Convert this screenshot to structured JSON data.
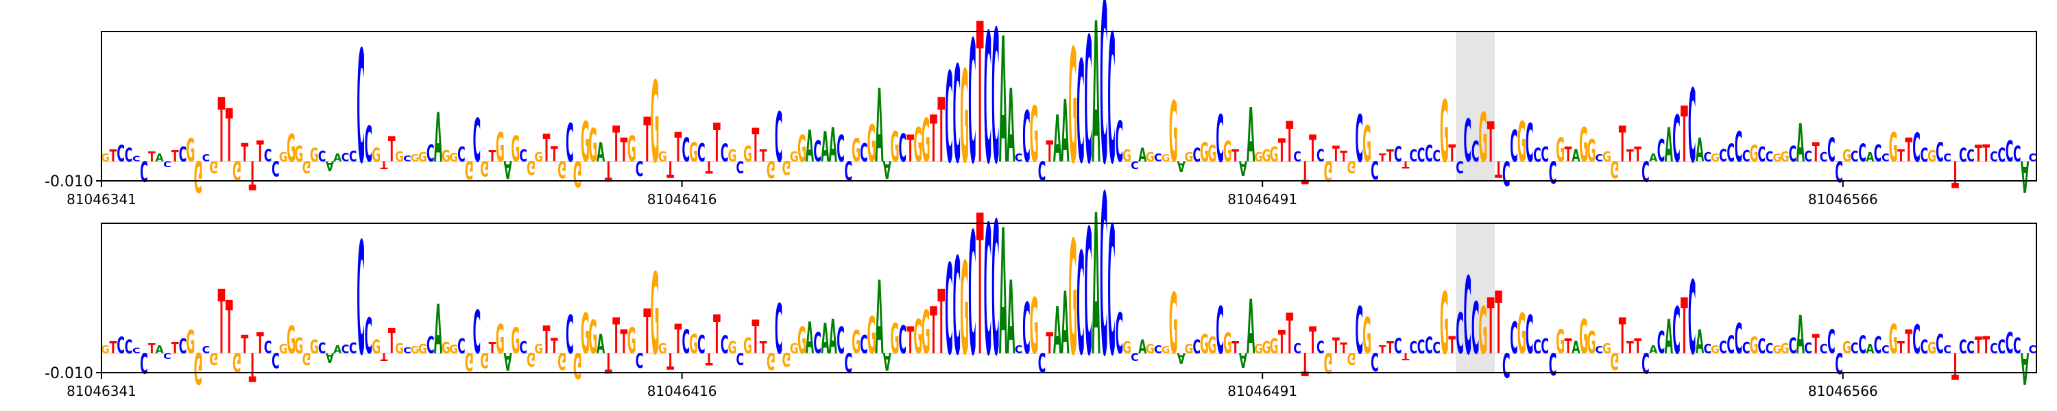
{
  "colors": {
    "A": "#008000",
    "C": "#0000ff",
    "G": "#ffa500",
    "T": "#ff0000",
    "highlight": "#e5e5e5",
    "frame": "#000000"
  },
  "chart_data": [
    {
      "type": "logo",
      "title": "",
      "xlabel": "",
      "ylabel": "",
      "xlim": [
        81046341,
        81046591
      ],
      "xticks": [
        81046341,
        81046416,
        81046491,
        81046566
      ],
      "xtick_labels": [
        "81046341",
        "81046416",
        "81046491",
        "81046566"
      ],
      "ytick_labels": [
        "-0.010"
      ],
      "highlight_range": [
        81046516,
        81046521
      ],
      "sequence": "GTCCCCTACTCGGCGTTGTTTCCGGGGGCAACCCCGTTGCGGCAGGCGCGTGAGCGGTTGCGGGATTTGCTGGTTCGCTTCGCGTTGCGGGACAACCGCGAAGCTGGTTCCGCTCCAACCGCTAAGCCACCCGCAGCGGAGCGGCGTAAGGGTTCTTCGTTGCGCTTCTCCCCGTCCCGTTCCGCCCCGTAGGCGGTTTCACACTCACGCCCCGCCGGCACTCCCGCCACCGTTCCGCCTCCTTCCCCACG",
      "scores": [
        0.0012,
        0.0018,
        0.0025,
        0.0021,
        0.0008,
        -0.0031,
        0.0015,
        0.0012,
        -0.0009,
        0.0017,
        0.0022,
        0.0035,
        -0.0048,
        0.0011,
        -0.0018,
        0.0098,
        0.0081,
        -0.0029,
        0.0028,
        -0.0044,
        0.0032,
        0.0019,
        -0.0023,
        0.0014,
        0.0042,
        0.0024,
        -0.0018,
        0.0021,
        0.0016,
        -0.0015,
        0.0012,
        0.0013,
        0.0016,
        0.0172,
        0.0054,
        0.0021,
        -0.0012,
        0.0038,
        0.0015,
        0.0009,
        0.0011,
        0.0014,
        0.0026,
        0.0075,
        0.0017,
        0.0013,
        0.0022,
        -0.0028,
        0.0066,
        -0.0023,
        0.0017,
        0.0045,
        -0.0027,
        0.0039,
        0.0018,
        -0.0021,
        0.0014,
        0.0042,
        0.0023,
        -0.0026,
        0.0058,
        -0.0039,
        0.0061,
        0.0051,
        0.0029,
        -0.0031,
        0.0054,
        0.0036,
        0.0039,
        -0.0022,
        0.0068,
        0.0124,
        0.0015,
        -0.0025,
        0.0045,
        0.0036,
        0.0029,
        0.0028,
        -0.0019,
        0.0059,
        0.0027,
        0.0018,
        -0.0018,
        0.0024,
        0.0051,
        0.0018,
        -0.0026,
        0.0076,
        -0.0021,
        0.0015,
        0.0041,
        0.0048,
        0.0032,
        0.0046,
        0.0052,
        0.0041,
        -0.0029,
        0.0035,
        0.0028,
        0.0056,
        0.0112,
        -0.0027,
        0.0046,
        0.0043,
        0.0041,
        0.0052,
        0.0066,
        0.0071,
        0.0098,
        0.0138,
        0.0148,
        0.0141,
        0.0187,
        0.0214,
        0.0198,
        0.0203,
        0.0192,
        0.0112,
        0.0012,
        0.0078,
        0.0085,
        -0.0029,
        0.0032,
        0.0071,
        0.0095,
        0.0174,
        0.0156,
        0.0192,
        0.0215,
        0.0245,
        0.0196,
        0.0062,
        0.0018,
        -0.0012,
        0.0021,
        0.0014,
        0.0012,
        0.0011,
        0.0092,
        -0.0016,
        0.0014,
        0.0021,
        0.0029,
        0.0025,
        0.0072,
        0.0031,
        0.0018,
        -0.0022,
        0.0083,
        0.0014,
        0.0018,
        0.0022,
        0.0035,
        0.0062,
        0.0015,
        -0.0035,
        0.0041,
        0.0019,
        -0.0031,
        0.0024,
        0.0016,
        -0.0018,
        0.0072,
        0.0055,
        -0.0028,
        0.0012,
        0.0018,
        0.0023,
        -0.0011,
        0.0018,
        0.0021,
        0.0025,
        0.0017,
        0.0094,
        0.0026,
        -0.0018,
        0.0065,
        0.0031,
        0.0075,
        0.0061,
        -0.0025,
        -0.0037,
        0.0048,
        0.0061,
        0.0058,
        0.0021,
        0.0022,
        -0.0034,
        0.0036,
        0.0022,
        0.0019,
        0.0052,
        0.0034,
        0.0011,
        0.0015,
        -0.0026,
        0.0054,
        0.0018,
        0.0022,
        -0.0031,
        0.0012,
        0.0034,
        0.0052,
        0.0071,
        0.0085,
        0.0112,
        0.0036,
        0.0014,
        0.0012,
        0.0019,
        0.0027,
        0.0046,
        0.0017,
        0.0025,
        0.0022,
        0.0015,
        0.0012,
        0.0015,
        0.0024,
        0.0058,
        0.0016,
        0.0029,
        0.0014,
        0.0036,
        -0.0032,
        0.0018,
        0.0016,
        0.0027,
        0.0014,
        0.0026,
        0.0012,
        0.0045,
        0.0018,
        0.0036,
        0.0044,
        0.0021,
        0.0017,
        0.0029,
        0.0012,
        -0.0041,
        0.0021,
        0.0018,
        0.0025,
        0.0026,
        0.0015,
        0.0021,
        0.0032,
        0.0024,
        -0.0048,
        0.0012
      ]
    },
    {
      "type": "logo",
      "title": "",
      "xlabel": "",
      "ylabel": "",
      "xlim": [
        81046341,
        81046591
      ],
      "xticks": [
        81046341,
        81046416,
        81046491,
        81046566
      ],
      "xtick_labels": [
        "81046341",
        "81046416",
        "81046491",
        "81046566"
      ],
      "ytick_labels": [
        "-0.010"
      ],
      "highlight_range": [
        81046516,
        81046521
      ],
      "sequence": "GTCCCCTACTCGGCGTTGTTTCCGGGGGCAACCCCGTTGCGGCAGGCGCGTGAGCGGTTGCGGGATTTGCTGGTTCGCTTCGCGTTGCGGGACAACCGCGAAGCTGGTTCCGCTCCAACCGCTAAGCCACCCGCAGCGGAGCGGCGTAAGGGTTCTTCGTTGCGCTTCTCCCCGTCCCGTTCCGCCCCGTAGGCGGTTTCACACTCACGCCCCGCCGGCACTCCCGCCACCGTTCCGCCTCCTTCCCCACG",
      "scores": [
        0.0012,
        0.0018,
        0.0025,
        0.0021,
        0.0008,
        -0.0031,
        0.0015,
        0.0012,
        -0.0009,
        0.0017,
        0.0022,
        0.0035,
        -0.0048,
        0.0011,
        -0.0018,
        0.0098,
        0.0081,
        -0.0029,
        0.0028,
        -0.0044,
        0.0032,
        0.0019,
        -0.0023,
        0.0014,
        0.0042,
        0.0024,
        -0.0018,
        0.0021,
        0.0016,
        -0.0015,
        0.0012,
        0.0013,
        0.0016,
        0.0172,
        0.0054,
        0.0021,
        -0.0012,
        0.0038,
        0.0015,
        0.0009,
        0.0011,
        0.0014,
        0.0026,
        0.0075,
        0.0017,
        0.0013,
        0.0022,
        -0.0028,
        0.0066,
        -0.0023,
        0.0017,
        0.0045,
        -0.0027,
        0.0039,
        0.0018,
        -0.0021,
        0.0014,
        0.0042,
        0.0023,
        -0.0026,
        0.0058,
        -0.0039,
        0.0061,
        0.0051,
        0.0029,
        -0.0031,
        0.0054,
        0.0036,
        0.0039,
        -0.0022,
        0.0068,
        0.0124,
        0.0015,
        -0.0025,
        0.0045,
        0.0036,
        0.0029,
        0.0028,
        -0.0019,
        0.0059,
        0.0027,
        0.0018,
        -0.0018,
        0.0024,
        0.0051,
        0.0018,
        -0.0026,
        0.0076,
        -0.0021,
        0.0015,
        0.0041,
        0.0048,
        0.0032,
        0.0046,
        0.0052,
        0.0041,
        -0.0029,
        0.0035,
        0.0028,
        0.0056,
        0.0112,
        -0.0027,
        0.0046,
        0.0043,
        0.0041,
        0.0052,
        0.0066,
        0.0071,
        0.0098,
        0.0138,
        0.0148,
        0.0141,
        0.0187,
        0.0214,
        0.0198,
        0.0203,
        0.0192,
        0.0112,
        0.0012,
        0.0078,
        0.0085,
        -0.0029,
        0.0032,
        0.0071,
        0.0095,
        0.0174,
        0.0156,
        0.0192,
        0.0215,
        0.0245,
        0.0196,
        0.0062,
        0.0018,
        -0.0012,
        0.0021,
        0.0014,
        0.0012,
        0.0011,
        0.0092,
        -0.0016,
        0.0014,
        0.0021,
        0.0029,
        0.0025,
        0.0072,
        0.0031,
        0.0018,
        -0.0022,
        0.0083,
        0.0014,
        0.0018,
        0.0022,
        0.0035,
        0.0062,
        0.0015,
        -0.0035,
        0.0041,
        0.0019,
        -0.0031,
        0.0024,
        0.0016,
        -0.0018,
        0.0072,
        0.0055,
        -0.0028,
        0.0012,
        0.0018,
        0.0023,
        -0.0011,
        0.0018,
        0.0021,
        0.0025,
        0.0017,
        0.0094,
        0.0026,
        -0.0018,
        0.0065,
        0.0031,
        0.0075,
        0.0061,
        -0.0025,
        -0.0037,
        0.0048,
        0.0061,
        0.0058,
        0.0021,
        0.0022,
        -0.0034,
        0.0036,
        0.0022,
        0.0019,
        0.0052,
        0.0034,
        0.0011,
        0.0015,
        -0.0026,
        0.0054,
        0.0018,
        0.0022,
        -0.0031,
        0.0012,
        0.0034,
        0.0052,
        0.0071,
        0.0085,
        0.0112,
        0.0036,
        0.0014,
        0.0012,
        0.0019,
        0.0027,
        0.0046,
        0.0017,
        0.0025,
        0.0022,
        0.0015,
        0.0012,
        0.0015,
        0.0024,
        0.0058,
        0.0016,
        0.0029,
        0.0014,
        0.0036,
        -0.0032,
        0.0018,
        0.0016,
        0.0027,
        0.0014,
        0.0026,
        0.0012,
        0.0045,
        0.0018,
        0.0036,
        0.0044,
        0.0021,
        0.0017,
        0.0029,
        0.0012,
        -0.0041,
        0.0021,
        0.0018,
        0.0025,
        0.0026,
        0.0015,
        0.0021,
        0.0032,
        0.0024,
        -0.0048,
        0.0012
      ],
      "score_overrides": {
        "175": 0.0062,
        "176": 0.0118,
        "177": 0.0079,
        "178": 0.0072,
        "179": 0.0085,
        "180": 0.0095
      }
    }
  ]
}
